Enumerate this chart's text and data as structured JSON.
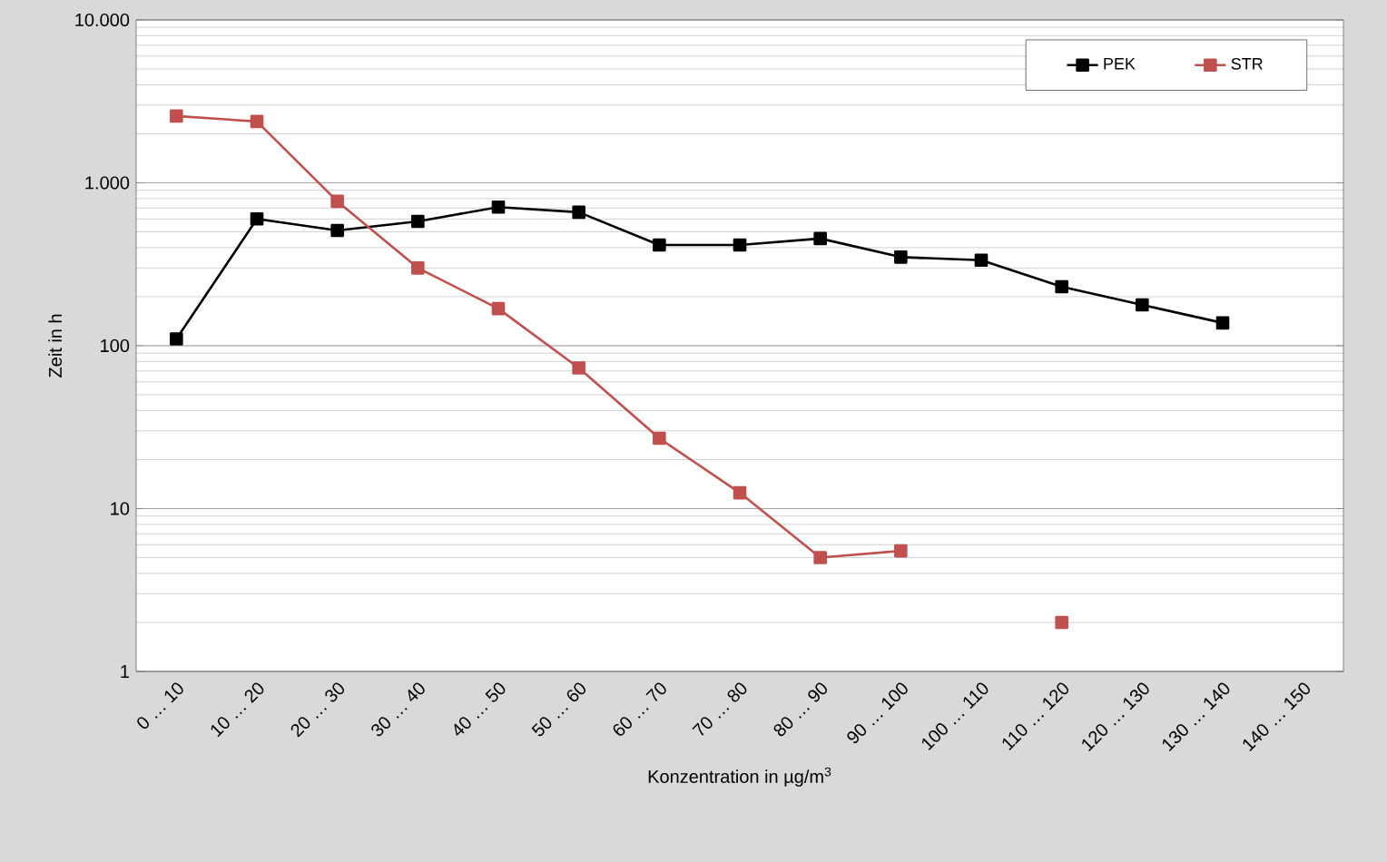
{
  "chart_data": {
    "type": "line",
    "xlabel": "Konzentration in µg/m$^{3}$",
    "ylabel": "Zeit in h",
    "categories": [
      "0 … 10",
      "10 … 20",
      "20 … 30",
      "30 … 40",
      "40 … 50",
      "50 … 60",
      "60 … 70",
      "70 … 80",
      "80 … 90",
      "90 … 100",
      "100 … 110",
      "110 … 120",
      "120 … 130",
      "130 … 140",
      "140 … 150"
    ],
    "series": [
      {
        "name": "PEK",
        "color": "#000000",
        "values": [
          110,
          600,
          510,
          580,
          710,
          660,
          415,
          415,
          455,
          350,
          335,
          230,
          178,
          138,
          null
        ]
      },
      {
        "name": "STR",
        "color": "#c0504d",
        "values": [
          2570,
          2380,
          770,
          300,
          169,
          73,
          27,
          12.5,
          5.0,
          5.5,
          null,
          2.0,
          null,
          null,
          null
        ]
      }
    ],
    "log": "y",
    "ylim": [
      1,
      10000
    ],
    "yticks": [
      1,
      10,
      100,
      {
        "value": 1000,
        "label": "1.000"
      },
      {
        "value": 10000,
        "label": "10.000"
      }
    ],
    "grid": "y",
    "legend": "top right",
    "marker": "square",
    "line_style": "solid"
  }
}
